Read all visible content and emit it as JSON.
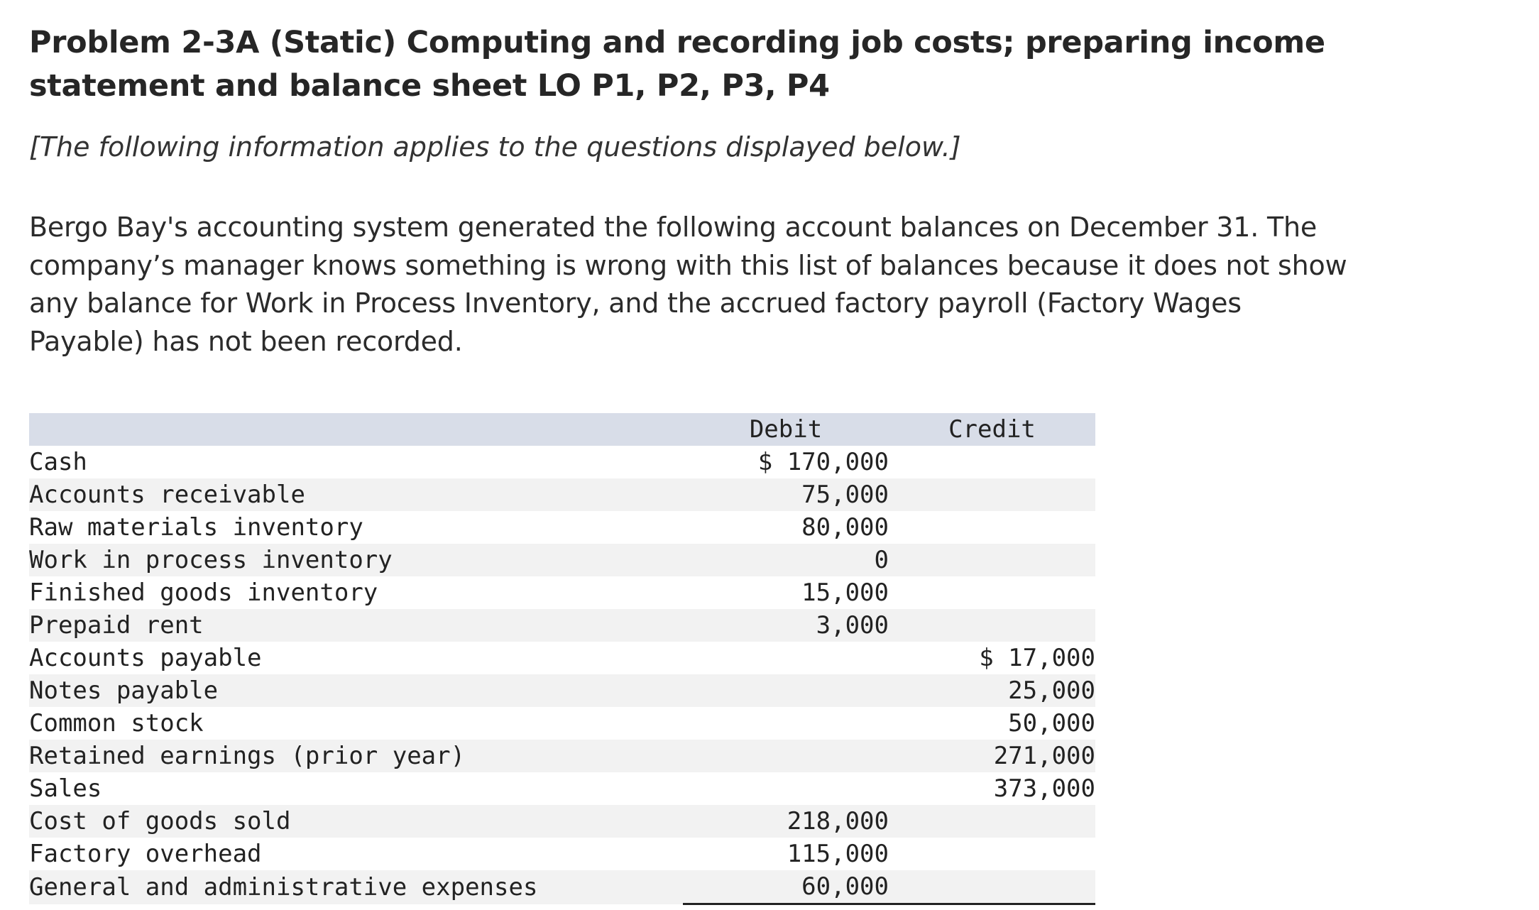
{
  "problem": {
    "title_line1": "Problem 2-3A (Static) Computing and recording job costs; preparing income",
    "title_line2": "statement and balance sheet LO P1, P2, P3, P4",
    "note": "[The following information applies to the questions displayed below.]",
    "para_line1": "Bergo Bay's accounting system generated the following account balances on December 31. The",
    "para_line2": "company’s manager knows something is wrong with this list of balances because it does not show",
    "para_line3": "any balance for Work in Process Inventory, and the accrued factory payroll (Factory Wages",
    "para_line4": "Payable) has not been recorded."
  },
  "table": {
    "header": {
      "label": "",
      "debit": "Debit",
      "credit": "Credit"
    },
    "rows": [
      {
        "label": "Cash",
        "debit": "$ 170,000",
        "credit": ""
      },
      {
        "label": "Accounts receivable",
        "debit": "75,000",
        "credit": ""
      },
      {
        "label": "Raw materials inventory",
        "debit": "80,000",
        "credit": ""
      },
      {
        "label": "Work in process inventory",
        "debit": "0",
        "credit": ""
      },
      {
        "label": "Finished goods inventory",
        "debit": "15,000",
        "credit": ""
      },
      {
        "label": "Prepaid rent",
        "debit": "3,000",
        "credit": ""
      },
      {
        "label": "Accounts payable",
        "debit": "",
        "credit": "$ 17,000"
      },
      {
        "label": "Notes payable",
        "debit": "",
        "credit": "25,000"
      },
      {
        "label": "Common stock",
        "debit": "",
        "credit": "50,000"
      },
      {
        "label": "Retained earnings (prior year)",
        "debit": "",
        "credit": "271,000"
      },
      {
        "label": "Sales",
        "debit": "",
        "credit": "373,000"
      },
      {
        "label": "Cost of goods sold",
        "debit": "218,000",
        "credit": ""
      },
      {
        "label": "Factory overhead",
        "debit": "115,000",
        "credit": ""
      },
      {
        "label": "General and administrative expenses",
        "debit": "60,000",
        "credit": ""
      }
    ]
  }
}
